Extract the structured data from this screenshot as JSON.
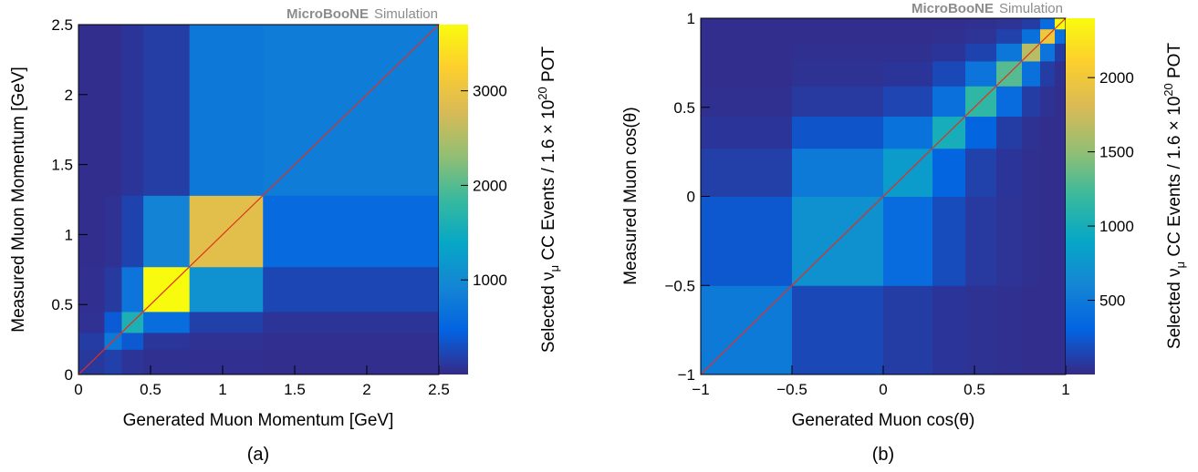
{
  "chart_data": [
    {
      "type": "heatmap",
      "panel_label": "(a)",
      "watermark_bold": "MicroBooNE",
      "watermark_text": "Simulation",
      "xlabel": "Generated Muon Momentum [GeV]",
      "ylabel": "Measured Muon Momentum [GeV]",
      "zlabel_prefix": "Selected ν",
      "zlabel_sub": "μ",
      "zlabel_mid": " CC Events / 1.6 × 10",
      "zlabel_sup": "20",
      "zlabel_suffix": " POT",
      "xlim": [
        0,
        2.5
      ],
      "ylim": [
        0,
        2.5
      ],
      "xticks": [
        "0",
        "0.5",
        "1",
        "1.5",
        "2",
        "2.5"
      ],
      "xtick_values": [
        0,
        0.5,
        1,
        1.5,
        2,
        2.5
      ],
      "yticks": [
        "0",
        "0.5",
        "1",
        "1.5",
        "2",
        "2.5"
      ],
      "ytick_values": [
        0,
        0.5,
        1,
        1.5,
        2,
        2.5
      ],
      "zlim": [
        0,
        3700
      ],
      "zticks": [
        "1000",
        "2000",
        "3000"
      ],
      "ztick_values": [
        1000,
        2000,
        3000
      ],
      "bin_edges": [
        0,
        0.18,
        0.3,
        0.45,
        0.77,
        1.28,
        2.5
      ],
      "values": [
        [
          120,
          180,
          80,
          50,
          40,
          30
        ],
        [
          150,
          750,
          380,
          100,
          60,
          40
        ],
        [
          60,
          400,
          1600,
          600,
          180,
          80
        ],
        [
          40,
          130,
          700,
          3700,
          1100,
          230
        ],
        [
          30,
          60,
          200,
          900,
          2900,
          560
        ],
        [
          30,
          30,
          90,
          160,
          750,
          800
        ]
      ]
    },
    {
      "type": "heatmap",
      "panel_label": "(b)",
      "watermark_bold": "MicroBooNE",
      "watermark_text": "Simulation",
      "xlabel": "Generated Muon cos(θ)",
      "ylabel": "Measured Muon cos(θ)",
      "zlabel_prefix": "Selected ν",
      "zlabel_sub": "μ",
      "zlabel_mid": " CC Events / 1.6 × 10",
      "zlabel_sup": "20",
      "zlabel_suffix": " POT",
      "xlim": [
        -1,
        1
      ],
      "ylim": [
        -1,
        1
      ],
      "xticks": [
        "−1",
        "−0.5",
        "0",
        "0.5",
        "1"
      ],
      "xtick_values": [
        -1,
        -0.5,
        0,
        0.5,
        1
      ],
      "yticks": [
        "−1",
        "−0.5",
        "0",
        "0.5",
        "1"
      ],
      "ytick_values": [
        -1,
        -0.5,
        0,
        0.5,
        1
      ],
      "zlim": [
        0,
        2400
      ],
      "zticks": [
        "500",
        "1000",
        "1500",
        "2000"
      ],
      "ztick_values": [
        500,
        1000,
        1500,
        2000
      ],
      "bin_edges": [
        -1,
        -0.5,
        0,
        0.27,
        0.45,
        0.62,
        0.76,
        0.86,
        0.94,
        1
      ],
      "values": [
        [
          500,
          160,
          100,
          60,
          40,
          30,
          20,
          20,
          20
        ],
        [
          240,
          700,
          380,
          180,
          80,
          50,
          30,
          20,
          20
        ],
        [
          110,
          500,
          800,
          320,
          120,
          60,
          30,
          20,
          20
        ],
        [
          60,
          220,
          430,
          1000,
          320,
          100,
          40,
          20,
          20
        ],
        [
          30,
          80,
          140,
          420,
          1150,
          380,
          100,
          40,
          20
        ],
        [
          20,
          40,
          60,
          160,
          450,
          1300,
          420,
          100,
          30
        ],
        [
          20,
          30,
          30,
          60,
          130,
          480,
          1650,
          450,
          100
        ],
        [
          20,
          20,
          20,
          30,
          50,
          120,
          420,
          2000,
          420
        ],
        [
          20,
          20,
          20,
          20,
          30,
          50,
          100,
          380,
          2400
        ]
      ]
    }
  ]
}
